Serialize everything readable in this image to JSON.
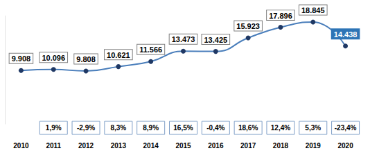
{
  "chart_data": {
    "type": "line",
    "categories": [
      "2010",
      "2011",
      "2012",
      "2013",
      "2014",
      "2015",
      "2016",
      "2017",
      "2018",
      "2019",
      "2020"
    ],
    "values": [
      9.908,
      10.096,
      9.808,
      10.621,
      11.566,
      13.473,
      13.425,
      15.923,
      17.896,
      18.845,
      14.438
    ],
    "color": "#4a7ebb",
    "marker": "circle",
    "line_style": "smooth",
    "data_labels": true,
    "tick_labels": "x",
    "grid": false,
    "ylim": [
      0,
      20
    ],
    "annotations": [
      {
        "category": "2011",
        "text": "1,9%"
      },
      {
        "category": "2012",
        "text": "-2,9%"
      },
      {
        "category": "2013",
        "text": "8,3%"
      },
      {
        "category": "2014",
        "text": "8,9%"
      },
      {
        "category": "2015",
        "text": "16,5%"
      },
      {
        "category": "2016",
        "text": "-0,4%"
      },
      {
        "category": "2017",
        "text": "18,6%"
      },
      {
        "category": "2018",
        "text": "12,4%"
      },
      {
        "category": "2019",
        "text": "5,3%"
      },
      {
        "category": "2020",
        "text": "-23,4%"
      }
    ]
  }
}
